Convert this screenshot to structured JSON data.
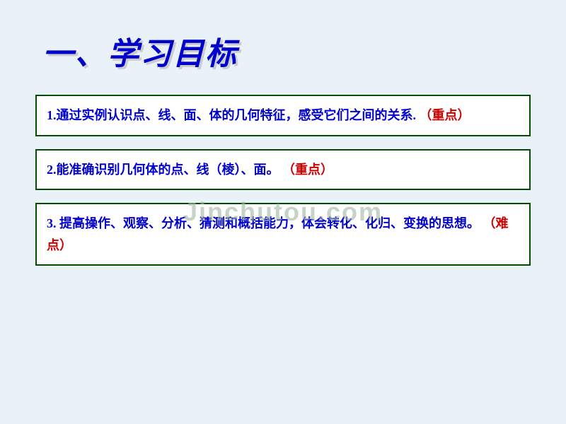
{
  "slide": {
    "background_color": "#eaf2f9",
    "title": {
      "text": "一、学习目标",
      "color": "#0000cc",
      "shadow_color": "#cccccc",
      "fontsize": 44
    },
    "boxes": [
      {
        "border_color": "#004d00",
        "bg_color": "#ffffff",
        "fontsize": 18,
        "parts": [
          {
            "text": "1.通过实例认识点、线、面、体的几何特征，感受它们之间的关系. ",
            "color": "#0000cc"
          },
          {
            "text": "（重点）",
            "color": "#cc0000"
          }
        ]
      },
      {
        "border_color": "#004d00",
        "bg_color": "#ffffff",
        "fontsize": 18,
        "parts": [
          {
            "text": "2.能准确识别几何体的点、线（棱）、面。 ",
            "color": "#0000cc"
          },
          {
            "text": "（重点）",
            "color": "#cc0000"
          }
        ]
      },
      {
        "border_color": "#004d00",
        "bg_color": "#ffffff",
        "fontsize": 18,
        "parts": [
          {
            "text": "3. 提高操作、观察、分析、猜测和概括能力，体会转化、化归、变换的思想。 ",
            "color": "#0000cc"
          },
          {
            "text": "（难点）",
            "color": "#cc0000"
          }
        ]
      }
    ],
    "watermark": {
      "text": "Jinchutou.com",
      "color": "#9fb89f",
      "fontsize": 36
    }
  }
}
